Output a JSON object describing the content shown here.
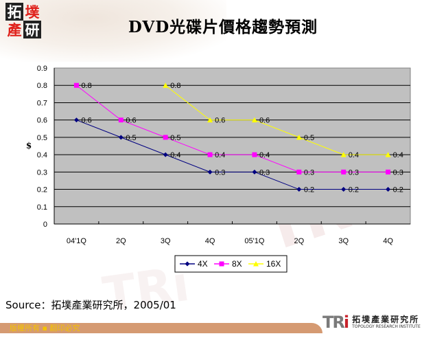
{
  "header": {
    "logo_chars": [
      "拓",
      "墣",
      "產",
      "研"
    ],
    "title": "DVD光碟片價格趨勢預測"
  },
  "chart_data": {
    "type": "line",
    "title": "DVD光碟片價格趨勢預測",
    "xlabel": "",
    "ylabel": "$",
    "ylim": [
      0,
      0.9
    ],
    "yticks": [
      "0",
      "0.1",
      "0.2",
      "0.3",
      "0.4",
      "0.5",
      "0.6",
      "0.7",
      "0.8",
      "0.9"
    ],
    "grid": true,
    "legend_position": "bottom",
    "categories": [
      "04'1Q",
      "2Q",
      "3Q",
      "4Q",
      "05'1Q",
      "2Q",
      "3Q",
      "4Q"
    ],
    "series": [
      {
        "name": "4X",
        "color": "#000080",
        "marker": "diamond",
        "values": [
          0.6,
          0.5,
          0.4,
          0.3,
          0.3,
          0.2,
          0.2,
          0.2
        ]
      },
      {
        "name": "8X",
        "color": "#ff00ff",
        "marker": "square",
        "values": [
          0.8,
          0.6,
          0.5,
          0.4,
          0.4,
          0.3,
          0.3,
          0.3
        ]
      },
      {
        "name": "16X",
        "color": "#ffff00",
        "marker": "triangle",
        "values": [
          null,
          null,
          0.8,
          0.6,
          0.6,
          0.5,
          0.4,
          0.4
        ]
      }
    ],
    "plot_background": "#c0c0c0"
  },
  "source": {
    "text": "Source：拓墣產業研究所，2005/01"
  },
  "footer": {
    "copyright": "版權所有 ▪ 翻印必究",
    "brand_mark": "TRi",
    "brand_cn": "拓墣產業研究所",
    "brand_en": "TOPOLOGY RESEARCH INSTITUTE"
  }
}
